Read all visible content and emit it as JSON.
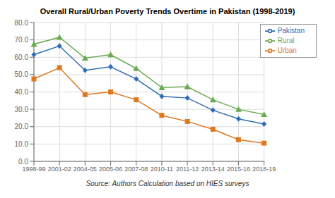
{
  "chart_data": {
    "type": "line",
    "title": "Overall Rural/Urban Poverty Trends Overtime in Pakistan (1998-2019)",
    "annotations": [
      "Source: Authors Calculation based on HIES surveys"
    ],
    "categories": [
      "1998-99",
      "2001-02",
      "2004-05",
      "2005-06",
      "2007-08",
      "2010-11",
      "2011-12",
      "2013-14",
      "2015-16",
      "2018-19"
    ],
    "series": [
      {
        "name": "Pakistan",
        "color": "#2e6db4",
        "marker": "diamond",
        "values": [
          61.5,
          66.5,
          52.5,
          54.5,
          47.5,
          37.5,
          36.5,
          29.5,
          24.5,
          21.5
        ]
      },
      {
        "name": "Urban",
        "color": "#e07820",
        "marker": "square",
        "values": [
          47.5,
          54.0,
          38.5,
          40.0,
          35.5,
          26.5,
          23.0,
          18.5,
          12.5,
          10.5
        ]
      },
      {
        "name": "Rural",
        "color": "#6aaa50",
        "marker": "triangle",
        "values": [
          67.5,
          71.5,
          59.5,
          61.5,
          53.5,
          42.5,
          43.0,
          35.5,
          30.0,
          27.0
        ]
      }
    ],
    "ylim": [
      0,
      80
    ],
    "yticks": [
      {
        "value": 0,
        "label": "0.0"
      },
      {
        "value": 10,
        "label": "10.0"
      },
      {
        "value": 20,
        "label": "20.0"
      },
      {
        "value": 30,
        "label": "30.0"
      },
      {
        "value": 40,
        "label": "40.0"
      },
      {
        "value": 50,
        "label": "50.0"
      },
      {
        "value": 60,
        "label": "60.0"
      },
      {
        "value": 70,
        "label": "70.0"
      },
      {
        "value": 80,
        "label": "80.0"
      }
    ],
    "grid": true,
    "legend": "upper right"
  }
}
